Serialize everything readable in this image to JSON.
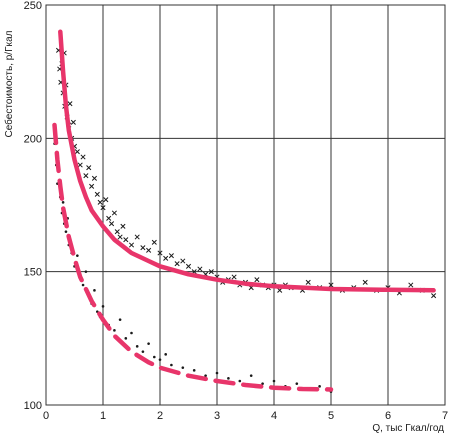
{
  "chart_data": {
    "type": "scatter",
    "title": "",
    "xlabel": "Q, тыс Гкал/год",
    "ylabel": "Себестоимость, р/Гкал",
    "xlim": [
      0,
      7
    ],
    "ylim": [
      100,
      250
    ],
    "x_ticks": [
      0,
      1,
      2,
      3,
      4,
      5,
      6,
      7
    ],
    "y_ticks": [
      100,
      150,
      200,
      250
    ],
    "grid": true,
    "colors": {
      "fit_curve": "#e8356a",
      "points": "#1a1a1a",
      "grid": "#333333"
    },
    "series": [
      {
        "marker": "x",
        "points": [
          [
            0.22,
            233
          ],
          [
            0.24,
            226
          ],
          [
            0.26,
            221
          ],
          [
            0.28,
            228
          ],
          [
            0.3,
            217
          ],
          [
            0.32,
            232
          ],
          [
            0.33,
            212
          ],
          [
            0.35,
            220
          ],
          [
            0.37,
            208
          ],
          [
            0.4,
            205
          ],
          [
            0.42,
            213
          ],
          [
            0.45,
            200
          ],
          [
            0.48,
            206
          ],
          [
            0.5,
            197
          ],
          [
            0.55,
            195
          ],
          [
            0.6,
            190
          ],
          [
            0.65,
            193
          ],
          [
            0.7,
            186
          ],
          [
            0.75,
            189
          ],
          [
            0.8,
            182
          ],
          [
            0.85,
            185
          ],
          [
            0.9,
            179
          ],
          [
            0.95,
            176
          ],
          [
            1.0,
            174
          ],
          [
            1.05,
            177
          ],
          [
            1.1,
            170
          ],
          [
            1.15,
            168
          ],
          [
            1.2,
            172
          ],
          [
            1.25,
            165
          ],
          [
            1.3,
            163
          ],
          [
            1.35,
            167
          ],
          [
            1.4,
            162
          ],
          [
            1.5,
            160
          ],
          [
            1.6,
            163
          ],
          [
            1.7,
            159
          ],
          [
            1.8,
            158
          ],
          [
            1.9,
            161
          ],
          [
            2.0,
            157
          ],
          [
            2.1,
            155
          ],
          [
            2.2,
            156
          ],
          [
            2.3,
            153
          ],
          [
            2.4,
            154
          ],
          [
            2.5,
            152
          ],
          [
            2.6,
            150
          ],
          [
            2.7,
            151
          ],
          [
            2.8,
            149
          ],
          [
            2.9,
            150
          ],
          [
            3.0,
            148
          ],
          [
            3.1,
            146
          ],
          [
            3.2,
            147
          ],
          [
            3.3,
            148
          ],
          [
            3.4,
            145
          ],
          [
            3.5,
            146
          ],
          [
            3.6,
            144
          ],
          [
            3.7,
            147
          ],
          [
            3.8,
            145
          ],
          [
            3.9,
            144
          ],
          [
            4.0,
            145
          ],
          [
            4.1,
            143
          ],
          [
            4.2,
            145
          ],
          [
            4.3,
            144
          ],
          [
            4.5,
            143
          ],
          [
            4.6,
            146
          ],
          [
            4.8,
            144
          ],
          [
            5.0,
            145
          ],
          [
            5.2,
            143
          ],
          [
            5.4,
            144
          ],
          [
            5.6,
            146
          ],
          [
            5.8,
            143
          ],
          [
            6.0,
            144
          ],
          [
            6.2,
            142
          ],
          [
            6.4,
            145
          ],
          [
            6.6,
            143
          ],
          [
            6.8,
            141
          ]
        ]
      },
      {
        "marker": "dot",
        "points": [
          [
            0.15,
            198
          ],
          [
            0.18,
            190
          ],
          [
            0.2,
            183
          ],
          [
            0.22,
            188
          ],
          [
            0.25,
            178
          ],
          [
            0.28,
            172
          ],
          [
            0.3,
            176
          ],
          [
            0.32,
            168
          ],
          [
            0.35,
            165
          ],
          [
            0.38,
            170
          ],
          [
            0.4,
            160
          ],
          [
            0.45,
            157
          ],
          [
            0.5,
            152
          ],
          [
            0.55,
            156
          ],
          [
            0.6,
            148
          ],
          [
            0.65,
            145
          ],
          [
            0.7,
            150
          ],
          [
            0.75,
            141
          ],
          [
            0.8,
            138
          ],
          [
            0.85,
            143
          ],
          [
            0.9,
            135
          ],
          [
            0.95,
            133
          ],
          [
            1.0,
            137
          ],
          [
            1.1,
            130
          ],
          [
            1.2,
            128
          ],
          [
            1.3,
            132
          ],
          [
            1.4,
            125
          ],
          [
            1.5,
            127
          ],
          [
            1.6,
            122
          ],
          [
            1.7,
            120
          ],
          [
            1.8,
            123
          ],
          [
            1.9,
            118
          ],
          [
            2.0,
            117
          ],
          [
            2.1,
            119
          ],
          [
            2.2,
            115
          ],
          [
            2.4,
            114
          ],
          [
            2.6,
            113
          ],
          [
            2.8,
            111
          ],
          [
            3.0,
            112
          ],
          [
            3.2,
            110
          ],
          [
            3.4,
            109
          ],
          [
            3.6,
            111
          ],
          [
            3.8,
            108
          ],
          [
            4.0,
            109
          ],
          [
            4.2,
            107
          ],
          [
            4.4,
            108
          ],
          [
            4.6,
            106
          ],
          [
            4.8,
            107
          ],
          [
            5.0,
            105
          ]
        ]
      }
    ],
    "fit_curves": [
      {
        "style": "solid",
        "points": [
          [
            0.25,
            240
          ],
          [
            0.3,
            225
          ],
          [
            0.35,
            212
          ],
          [
            0.4,
            203
          ],
          [
            0.5,
            192
          ],
          [
            0.6,
            184
          ],
          [
            0.7,
            178
          ],
          [
            0.8,
            173
          ],
          [
            1.0,
            167
          ],
          [
            1.2,
            162
          ],
          [
            1.5,
            157
          ],
          [
            1.8,
            154
          ],
          [
            2.0,
            152
          ],
          [
            2.5,
            149
          ],
          [
            3.0,
            147
          ],
          [
            3.5,
            145.5
          ],
          [
            4.0,
            144.5
          ],
          [
            5.0,
            143.5
          ],
          [
            6.0,
            143.2
          ],
          [
            6.8,
            143
          ]
        ]
      },
      {
        "style": "dashed",
        "points": [
          [
            0.15,
            205
          ],
          [
            0.2,
            192
          ],
          [
            0.25,
            182
          ],
          [
            0.3,
            174
          ],
          [
            0.4,
            163
          ],
          [
            0.5,
            155
          ],
          [
            0.6,
            148
          ],
          [
            0.8,
            139
          ],
          [
            1.0,
            132
          ],
          [
            1.2,
            126
          ],
          [
            1.5,
            120
          ],
          [
            1.8,
            116
          ],
          [
            2.0,
            114
          ],
          [
            2.5,
            111
          ],
          [
            3.0,
            109
          ],
          [
            3.5,
            107.5
          ],
          [
            4.0,
            106.5
          ],
          [
            4.5,
            106
          ],
          [
            5.0,
            105.8
          ]
        ]
      }
    ]
  }
}
